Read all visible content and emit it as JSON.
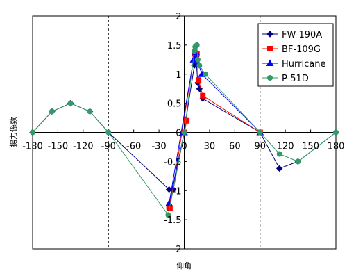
{
  "chart_data": {
    "type": "line",
    "xlabel": "仰角",
    "ylabel": "揚力係数",
    "xlim": [
      -180,
      180
    ],
    "ylim": [
      -2,
      2
    ],
    "x_ticks": [
      -180,
      -150,
      -120,
      -90,
      -60,
      -30,
      0,
      30,
      60,
      90,
      120,
      150,
      180
    ],
    "y_ticks": [
      -2,
      -1.5,
      -1,
      -0.5,
      0,
      0.5,
      1,
      1.5,
      2
    ],
    "x_tick_labels": [
      "-180",
      "-150",
      "-120",
      "-90",
      "-60",
      "-30",
      "0",
      "30",
      "60",
      "90",
      "120",
      "150",
      "180"
    ],
    "y_tick_labels": [
      "-2",
      "-1.5",
      "-1",
      "-0.5",
      "0",
      "0.5",
      "1",
      "1.5",
      "2"
    ],
    "reference_lines_x": [
      -90,
      90
    ],
    "grid": false,
    "legend_position": "top-right",
    "series": [
      {
        "name": "FW-190A",
        "color": "#000080",
        "marker": "diamond",
        "points": [
          [
            -180,
            0
          ],
          [
            -157,
            0.36
          ],
          [
            -135,
            0.5
          ],
          [
            -112,
            0.36
          ],
          [
            -90,
            0
          ],
          [
            -18,
            -0.98
          ],
          [
            -13,
            -0.98
          ],
          [
            0,
            0
          ],
          [
            2,
            0.22
          ],
          [
            12,
            1.15
          ],
          [
            14,
            1.3
          ],
          [
            16,
            0.85
          ],
          [
            18,
            0.75
          ],
          [
            22,
            0.58
          ],
          [
            90,
            0
          ],
          [
            113,
            -0.62
          ],
          [
            135,
            -0.5
          ],
          [
            180,
            0
          ]
        ]
      },
      {
        "name": "BF-109G",
        "color": "#ff0000",
        "marker": "square",
        "points": [
          [
            0,
            0
          ],
          [
            3,
            0.2
          ],
          [
            -18,
            -1.28
          ],
          [
            -17,
            -1.3
          ],
          [
            12,
            1.35
          ],
          [
            15,
            1.35
          ],
          [
            17,
            0.9
          ],
          [
            22,
            0.63
          ],
          [
            90,
            0
          ]
        ]
      },
      {
        "name": "Hurricane",
        "color": "#0000ff",
        "marker": "triangle",
        "points": [
          [
            0,
            0
          ],
          [
            -18,
            -1.22
          ],
          [
            11,
            1.25
          ],
          [
            14,
            1.38
          ],
          [
            17,
            1.17
          ],
          [
            21,
            1.0
          ],
          [
            90,
            0
          ]
        ]
      },
      {
        "name": "P-51D",
        "color": "#339966",
        "marker": "circle",
        "points": [
          [
            -180,
            0
          ],
          [
            -157,
            0.36
          ],
          [
            -135,
            0.5
          ],
          [
            -112,
            0.36
          ],
          [
            -90,
            0
          ],
          [
            -19,
            -1.42
          ],
          [
            0,
            0
          ],
          [
            12,
            1.4
          ],
          [
            13,
            1.47
          ],
          [
            15,
            1.5
          ],
          [
            16,
            1.25
          ],
          [
            18,
            1.15
          ],
          [
            25,
            1.0
          ],
          [
            90,
            0
          ],
          [
            113,
            -0.37
          ],
          [
            135,
            -0.5
          ],
          [
            180,
            0
          ]
        ]
      }
    ]
  }
}
